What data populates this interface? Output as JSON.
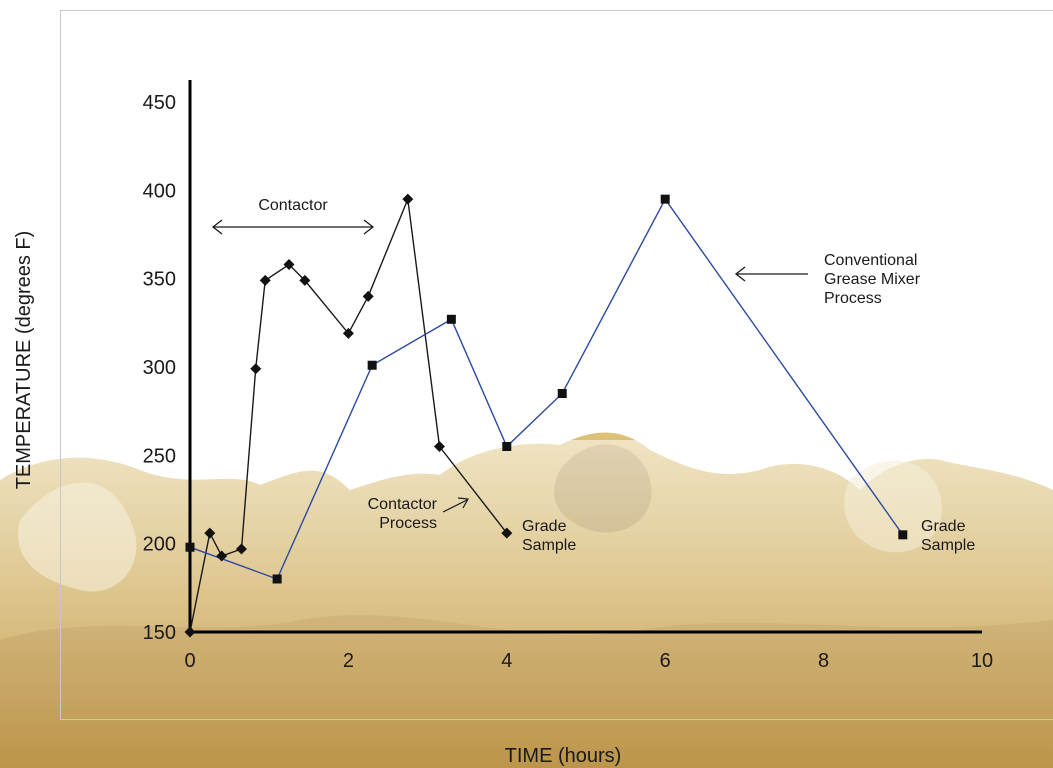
{
  "chart_data": {
    "type": "line",
    "xlabel": "TIME (hours)",
    "ylabel": "TEMPERATURE (degrees F)",
    "xlim": [
      0,
      10
    ],
    "ylim": [
      150,
      450
    ],
    "x_ticks": [
      "0",
      "2",
      "4",
      "6",
      "8",
      "10"
    ],
    "y_ticks": [
      "150",
      "200",
      "250",
      "300",
      "350",
      "400",
      "450"
    ],
    "grid": false,
    "series": [
      {
        "marker": "diamond",
        "color": "#1a1a1a",
        "points": [
          [
            0,
            150
          ],
          [
            0.25,
            206
          ],
          [
            0.4,
            193
          ],
          [
            0.65,
            197
          ],
          [
            0.83,
            299
          ],
          [
            0.95,
            349
          ],
          [
            1.25,
            358
          ],
          [
            1.45,
            349
          ],
          [
            2.0,
            319
          ],
          [
            2.25,
            340
          ],
          [
            2.75,
            395
          ],
          [
            3.15,
            255
          ],
          [
            4.0,
            206
          ]
        ]
      },
      {
        "marker": "square",
        "color": "#2b4aa0",
        "points": [
          [
            0,
            198
          ],
          [
            1.1,
            180
          ],
          [
            2.3,
            301
          ],
          [
            3.3,
            327
          ],
          [
            4.0,
            255
          ],
          [
            4.7,
            285
          ],
          [
            6.0,
            395
          ],
          [
            9.0,
            205
          ]
        ]
      }
    ],
    "annotations": {
      "contactor": "Contactor",
      "contactor_process": [
        "Contactor",
        "Process"
      ],
      "conventional_process": [
        "Conventional",
        "Grease Mixer",
        "Process"
      ],
      "grade_sample_1": [
        "Grade",
        "Sample"
      ],
      "grade_sample_2": [
        "Grade",
        "Sample"
      ]
    }
  }
}
